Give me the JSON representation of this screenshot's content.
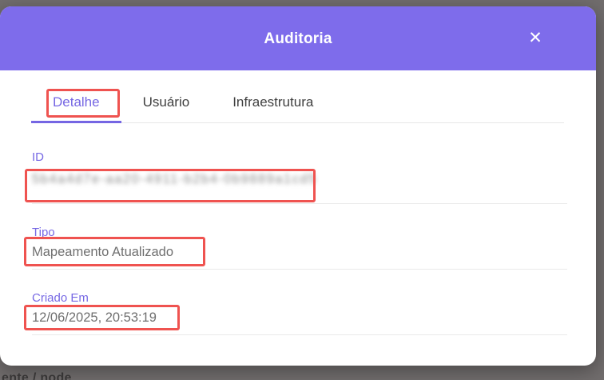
{
  "modal": {
    "title": "Auditoria",
    "close_icon": "✕"
  },
  "tabs": [
    {
      "label": "Detalhe",
      "active": true
    },
    {
      "label": "Usuário",
      "active": false
    },
    {
      "label": "Infraestrutura",
      "active": false
    }
  ],
  "fields": {
    "id": {
      "label": "ID",
      "value": "5b4a4d7e-aa20-4911-b2b4-0b9889a1cd57",
      "redacted": true
    },
    "tipo": {
      "label": "Tipo",
      "value": "Mapeamento Atualizado"
    },
    "criado_em": {
      "label": "Criado Em",
      "value": "12/06/2025, 20:53:19"
    }
  },
  "backdrop": {
    "clipped_text": "ente / node"
  },
  "annotations": {
    "color": "#ef5350",
    "targets": [
      "tab-detalhe",
      "id-value",
      "tipo-value",
      "criado-em-value"
    ]
  },
  "colors": {
    "header_purple": "#7e6ceb",
    "accent_purple": "#7566e3",
    "annotation_red": "#ef5350",
    "value_gray": "#6f6f6f",
    "backdrop_gray": "#716d6d"
  }
}
